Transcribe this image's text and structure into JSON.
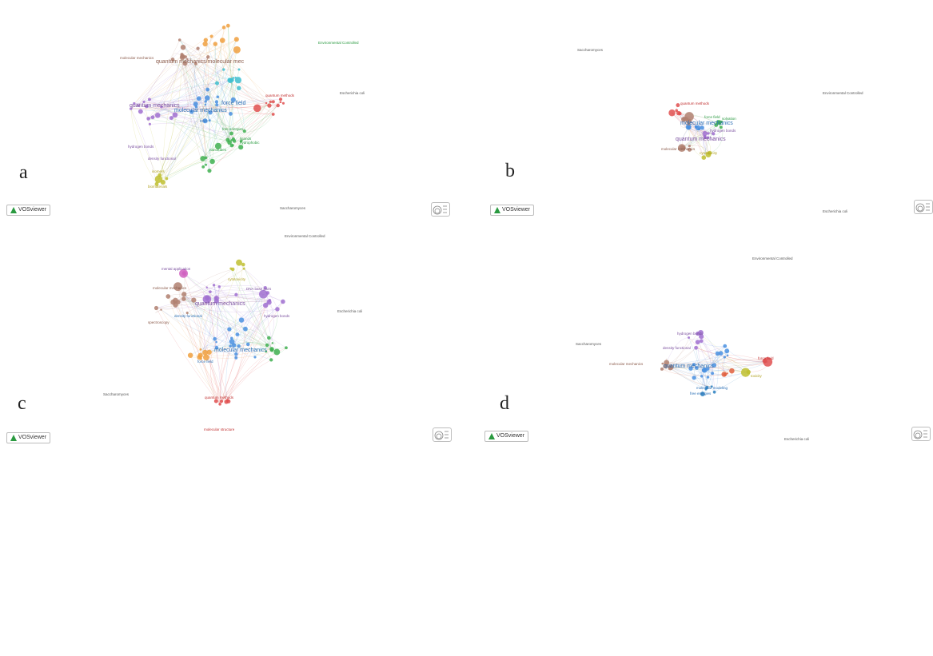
{
  "app_name": "VOSviewer",
  "panels": [
    {
      "letter": "a",
      "labels": [
        {
          "text": "quantum mechanics",
          "c": "#7a4f9e",
          "big": true
        },
        {
          "text": "molecular mechanics",
          "c": "#2a6fb5",
          "big": true
        },
        {
          "text": "force field",
          "c": "#2a6fb5",
          "big": true
        },
        {
          "text": "quantum mechanics/molecular mec",
          "c": "#8a5a4a",
          "big": true
        },
        {
          "text": "hydrogen bonds",
          "c": "#7a4f9e",
          "big": false
        },
        {
          "text": "density functional",
          "c": "#7a4f9e",
          "big": false
        },
        {
          "text": "free energies",
          "c": "#2a9a40",
          "big": false
        },
        {
          "text": "quantum methods",
          "c": "#c03030",
          "big": false
        },
        {
          "text": "molecular mechanics",
          "c": "#8a5a4a",
          "big": false
        },
        {
          "text": "DNA",
          "c": "#2a6fb5",
          "big": false
        },
        {
          "text": "Environmental Controlled",
          "c": "#2a9a40",
          "big": false
        },
        {
          "text": "Escherichia coli",
          "c": "#555",
          "big": false
        },
        {
          "text": "Saccharomyces",
          "c": "#555",
          "big": false
        },
        {
          "text": "hydrophobic",
          "c": "#2a9a40",
          "big": false
        },
        {
          "text": "ligands",
          "c": "#2a9a40",
          "big": false
        },
        {
          "text": "nanotubes",
          "c": "#2a9a40",
          "big": false
        },
        {
          "text": "isomers",
          "c": "#b0a020",
          "big": false
        },
        {
          "text": "biomaterials",
          "c": "#b0a020",
          "big": false
        }
      ]
    },
    {
      "letter": "b",
      "labels": [
        {
          "text": "molecular mechanics",
          "c": "#2a6fb5",
          "big": true
        },
        {
          "text": "quantum mechanics",
          "c": "#7a4f9e",
          "big": true
        },
        {
          "text": "hydrogen bonds",
          "c": "#7a4f9e",
          "big": false
        },
        {
          "text": "force field",
          "c": "#2a9a40",
          "big": false
        },
        {
          "text": "quantum methods",
          "c": "#c03030",
          "big": false
        },
        {
          "text": "molecular mechanics",
          "c": "#8a5a4a",
          "big": false
        },
        {
          "text": "Environmental Controlled",
          "c": "#555",
          "big": false
        },
        {
          "text": "Escherichia coli",
          "c": "#555",
          "big": false
        },
        {
          "text": "Saccharomyces",
          "c": "#555",
          "big": false
        },
        {
          "text": "solvation",
          "c": "#2a9a40",
          "big": false
        },
        {
          "text": "cytotoxicity",
          "c": "#b0a020",
          "big": false
        }
      ]
    },
    {
      "letter": "c",
      "labels": [
        {
          "text": "quantum mechanics",
          "c": "#7a4f9e",
          "big": true
        },
        {
          "text": "molecular mechanics",
          "c": "#2a6fb5",
          "big": true
        },
        {
          "text": "molecular mechanics",
          "c": "#8a5a4a",
          "big": false
        },
        {
          "text": "hydrogen bonds",
          "c": "#7a4f9e",
          "big": false
        },
        {
          "text": "DNA base pairs",
          "c": "#7a4f9e",
          "big": false
        },
        {
          "text": "quantum methods",
          "c": "#c03030",
          "big": false
        },
        {
          "text": "mental application",
          "c": "#7a4f9e",
          "big": false
        },
        {
          "text": "density functional",
          "c": "#2a6fb5",
          "big": false
        },
        {
          "text": "spectroscopy",
          "c": "#8a5a4a",
          "big": false
        },
        {
          "text": "force field",
          "c": "#2a6fb5",
          "big": false
        },
        {
          "text": "Environmental Controlled",
          "c": "#555",
          "big": false
        },
        {
          "text": "Escherichia coli",
          "c": "#555",
          "big": false
        },
        {
          "text": "Saccharomyces",
          "c": "#555",
          "big": false
        },
        {
          "text": "cytotoxicity",
          "c": "#b0a020",
          "big": false
        },
        {
          "text": "molecular structure",
          "c": "#c03030",
          "big": false
        }
      ]
    },
    {
      "letter": "d",
      "labels": [
        {
          "text": "quantum mechanics",
          "c": "#2a6fb5",
          "big": true
        },
        {
          "text": "hydrogen bonds",
          "c": "#7a4f9e",
          "big": false
        },
        {
          "text": "molecular mechanics",
          "c": "#8a5a4a",
          "big": false
        },
        {
          "text": "density functional",
          "c": "#7a4f9e",
          "big": false
        },
        {
          "text": "free energies",
          "c": "#2a6fb5",
          "big": false
        },
        {
          "text": "molecular modeling",
          "c": "#2a6fb5",
          "big": false
        },
        {
          "text": "Environmental Controlled",
          "c": "#555",
          "big": false
        },
        {
          "text": "Escherichia coli",
          "c": "#555",
          "big": false
        },
        {
          "text": "Saccharomyces",
          "c": "#555",
          "big": false
        },
        {
          "text": "toxicity",
          "c": "#b0a020",
          "big": false
        },
        {
          "text": "force field",
          "c": "#c03030",
          "big": false
        }
      ]
    }
  ]
}
